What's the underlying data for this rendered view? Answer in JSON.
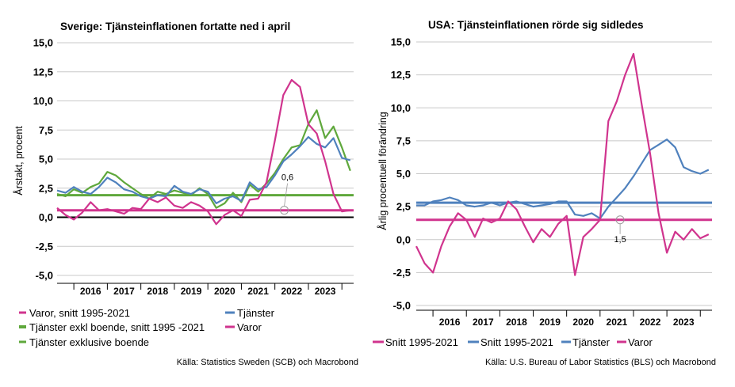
{
  "chart_data": [
    {
      "type": "line",
      "title": "Sverige: Tjänsteinflationen fortatte ned i april",
      "ylabel": "Årstakt, procent",
      "xlabel": "",
      "ylim": [
        -5,
        15
      ],
      "yticks": [
        "15,0",
        "12,5",
        "10,0",
        "7,5",
        "5,0",
        "2,5",
        "0,0",
        "-2,5",
        "-5,0"
      ],
      "ytick_values": [
        15,
        12.5,
        10,
        7.5,
        5,
        2.5,
        0,
        -2.5,
        -5
      ],
      "xlim": [
        2015.5,
        2024.35
      ],
      "xticks": [
        "2016",
        "2017",
        "2018",
        "2019",
        "2020",
        "2021",
        "2022",
        "2023"
      ],
      "annotation": {
        "text": "0,6",
        "x": 2022.28,
        "y": 0.6
      },
      "series": [
        {
          "name": "Varor, snitt 1995-2021",
          "role": "hline",
          "color": "#d0348e",
          "value": 0.6,
          "x": [
            2015.5,
            2024.35
          ],
          "values": [
            0.6,
            0.6
          ]
        },
        {
          "name": "Tjänster exkl boende, snitt 1995 -2021",
          "role": "hline",
          "color": "#5fa83c",
          "value": 1.9,
          "x": [
            2015.5,
            2024.35
          ],
          "values": [
            1.9,
            1.9
          ]
        },
        {
          "name": "Tjänster exklusive boende",
          "role": "line",
          "color": "#5fa83c",
          "x": [
            2015.5,
            2015.75,
            2016,
            2016.25,
            2016.5,
            2016.75,
            2017,
            2017.25,
            2017.5,
            2017.75,
            2018,
            2018.25,
            2018.5,
            2018.75,
            2019,
            2019.25,
            2019.5,
            2019.75,
            2020,
            2020.25,
            2020.5,
            2020.75,
            2021,
            2021.25,
            2021.5,
            2021.75,
            2022,
            2022.25,
            2022.5,
            2022.75,
            2023,
            2023.25,
            2023.5,
            2023.75,
            2024,
            2024.25
          ],
          "values": [
            2.0,
            1.8,
            2.4,
            2.1,
            2.6,
            2.9,
            3.9,
            3.6,
            3.0,
            2.5,
            2.0,
            1.6,
            2.2,
            2.0,
            2.3,
            2.1,
            1.9,
            2.5,
            2.0,
            0.8,
            1.2,
            2.1,
            1.3,
            2.8,
            2.2,
            2.9,
            3.8,
            5.0,
            6.0,
            6.2,
            8.0,
            9.2,
            6.8,
            7.8,
            6.0,
            4.0
          ]
        },
        {
          "name": "Tjänster",
          "role": "line",
          "color": "#4f81bd",
          "x": [
            2015.5,
            2015.75,
            2016,
            2016.25,
            2016.5,
            2016.75,
            2017,
            2017.25,
            2017.5,
            2017.75,
            2018,
            2018.25,
            2018.5,
            2018.75,
            2019,
            2019.25,
            2019.5,
            2019.75,
            2020,
            2020.25,
            2020.5,
            2020.75,
            2021,
            2021.25,
            2021.5,
            2021.75,
            2022,
            2022.25,
            2022.5,
            2022.75,
            2023,
            2023.25,
            2023.5,
            2023.75,
            2024,
            2024.25
          ],
          "values": [
            2.3,
            2.1,
            2.6,
            2.2,
            2.0,
            2.6,
            3.4,
            3.0,
            2.4,
            2.2,
            1.8,
            1.6,
            1.9,
            1.8,
            2.7,
            2.2,
            2.0,
            2.4,
            2.2,
            1.2,
            1.6,
            1.8,
            1.4,
            3.0,
            2.4,
            2.6,
            3.6,
            4.8,
            5.4,
            6.1,
            6.9,
            6.3,
            6.0,
            6.8,
            5.1,
            4.9
          ]
        },
        {
          "name": "Varor",
          "role": "line",
          "color": "#d0348e",
          "x": [
            2015.5,
            2015.75,
            2016,
            2016.25,
            2016.5,
            2016.75,
            2017,
            2017.25,
            2017.5,
            2017.75,
            2018,
            2018.25,
            2018.5,
            2018.75,
            2019,
            2019.25,
            2019.5,
            2019.75,
            2020,
            2020.25,
            2020.5,
            2020.75,
            2021,
            2021.25,
            2021.5,
            2021.75,
            2022,
            2022.25,
            2022.5,
            2022.75,
            2023,
            2023.25,
            2023.5,
            2023.75,
            2024,
            2024.25
          ],
          "values": [
            0.8,
            0.2,
            -0.2,
            0.4,
            1.3,
            0.6,
            0.7,
            0.5,
            0.3,
            0.8,
            0.7,
            1.6,
            1.3,
            1.7,
            1.0,
            0.8,
            1.3,
            1.0,
            0.5,
            -0.6,
            0.2,
            0.6,
            0.1,
            1.5,
            1.6,
            3.0,
            6.6,
            10.5,
            11.8,
            11.2,
            8.0,
            7.2,
            4.8,
            2.0,
            0.5,
            0.6
          ]
        }
      ],
      "legend": [
        {
          "label": "Varor, snitt 1995-2021",
          "color": "#d0348e"
        },
        {
          "label": "Tjänster",
          "color": "#4f81bd"
        },
        {
          "label": "Tjänster exkl boende, snitt 1995 -2021",
          "color": "#5fa83c"
        },
        {
          "label": "Varor",
          "color": "#d0348e"
        },
        {
          "label": "Tjänster exklusive boende",
          "color": "#5fa83c"
        }
      ],
      "source": "Källa: Statistics Sweden (SCB) och Macrobond",
      "grid": true,
      "zero_line": true
    },
    {
      "type": "line",
      "title": "USA: Tjänsteinflationen rörde sig sidledes",
      "ylabel": "Årlig procentuell förändring",
      "xlabel": "",
      "ylim": [
        -5,
        15
      ],
      "yticks": [
        "15,0",
        "12,5",
        "10,0",
        "7,5",
        "5,0",
        "2,5",
        "0,0",
        "-2,5",
        "-5,0"
      ],
      "ytick_values": [
        15,
        12.5,
        10,
        7.5,
        5,
        2.5,
        0,
        -2.5,
        -5
      ],
      "xlim": [
        2015.5,
        2024.35
      ],
      "xticks": [
        "2016",
        "2017",
        "2018",
        "2019",
        "2020",
        "2021",
        "2022",
        "2023"
      ],
      "annotation": {
        "text": "1,5",
        "x": 2021.6,
        "y": 1.5
      },
      "series": [
        {
          "name": "Snitt 1995-2021",
          "role": "hline",
          "color": "#d0348e",
          "value": 1.5,
          "x": [
            2015.5,
            2024.35
          ],
          "values": [
            1.5,
            1.5
          ]
        },
        {
          "name": "Snitt 1995-2021",
          "role": "hline",
          "color": "#4f81bd",
          "value": 2.8,
          "x": [
            2015.5,
            2024.35
          ],
          "values": [
            2.8,
            2.8
          ]
        },
        {
          "name": "Tjänster",
          "role": "line",
          "color": "#4f81bd",
          "x": [
            2015.5,
            2015.75,
            2016,
            2016.25,
            2016.5,
            2016.75,
            2017,
            2017.25,
            2017.5,
            2017.75,
            2018,
            2018.25,
            2018.5,
            2018.75,
            2019,
            2019.25,
            2019.5,
            2019.75,
            2020,
            2020.25,
            2020.5,
            2020.75,
            2021,
            2021.25,
            2021.5,
            2021.75,
            2022,
            2022.25,
            2022.5,
            2022.75,
            2023,
            2023.25,
            2023.5,
            2023.75,
            2024,
            2024.25
          ],
          "values": [
            2.6,
            2.6,
            2.9,
            3.0,
            3.2,
            3.0,
            2.6,
            2.5,
            2.6,
            2.8,
            2.6,
            2.8,
            2.9,
            2.7,
            2.5,
            2.6,
            2.7,
            2.9,
            2.9,
            1.9,
            1.8,
            2.0,
            1.6,
            2.5,
            3.2,
            3.9,
            4.8,
            5.8,
            6.8,
            7.2,
            7.6,
            7.0,
            5.5,
            5.2,
            5.0,
            5.3
          ]
        },
        {
          "name": "Varor",
          "role": "line",
          "color": "#d0348e",
          "x": [
            2015.5,
            2015.75,
            2016,
            2016.25,
            2016.5,
            2016.75,
            2017,
            2017.25,
            2017.5,
            2017.75,
            2018,
            2018.25,
            2018.5,
            2018.75,
            2019,
            2019.25,
            2019.5,
            2019.75,
            2020,
            2020.25,
            2020.5,
            2020.75,
            2021,
            2021.25,
            2021.5,
            2021.75,
            2022,
            2022.25,
            2022.5,
            2022.75,
            2023,
            2023.25,
            2023.5,
            2023.75,
            2024,
            2024.25
          ],
          "values": [
            -0.5,
            -1.8,
            -2.5,
            -0.5,
            1.0,
            2.0,
            1.5,
            0.2,
            1.6,
            1.3,
            1.6,
            2.9,
            2.3,
            1.0,
            -0.2,
            0.8,
            0.2,
            1.2,
            1.8,
            -2.7,
            0.2,
            0.8,
            1.5,
            9.0,
            10.5,
            12.5,
            14.1,
            10.2,
            6.5,
            2.0,
            -1.0,
            0.6,
            0.0,
            0.8,
            0.1,
            0.4
          ]
        }
      ],
      "legend": [
        {
          "label": "Snitt 1995-2021",
          "color": "#d0348e"
        },
        {
          "label": "Snitt 1995-2021",
          "color": "#4f81bd"
        },
        {
          "label": "Tjänster",
          "color": "#4f81bd"
        },
        {
          "label": "Varor",
          "color": "#d0348e"
        }
      ],
      "source": "Källa: U.S. Bureau of Labor Statistics (BLS) och Macrobond",
      "grid": true,
      "zero_line": false
    }
  ]
}
